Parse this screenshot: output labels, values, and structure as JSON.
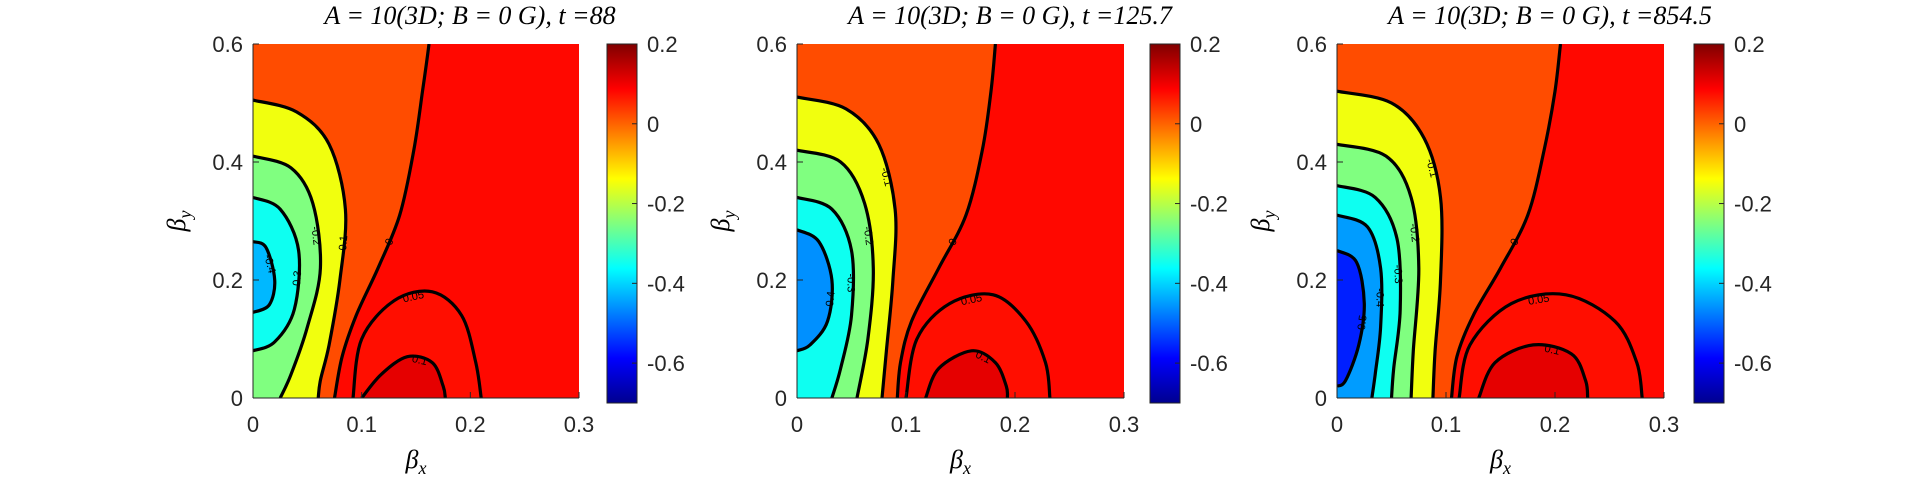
{
  "chart_data": [
    {
      "type": "contour",
      "title": "A = 10(3D; B = 0 G), t =88",
      "xlabel": "βx",
      "ylabel": "βy",
      "xlim": [
        0,
        0.3
      ],
      "ylim": [
        0,
        0.6
      ],
      "xticks": [
        "0",
        "0.1",
        "0.2",
        "0.3"
      ],
      "yticks": [
        "0",
        "0.2",
        "0.4",
        "0.6"
      ],
      "colorbar": {
        "lim": [
          -0.7,
          0.2
        ],
        "ticks": [
          "0.2",
          "0",
          "-0.2",
          "-0.4",
          "-0.6"
        ]
      },
      "center": {
        "x": 0.0,
        "y": 0.2,
        "value": -0.45
      },
      "hot_spot": {
        "x": 0.145,
        "y": 0.03,
        "value": 0.12
      },
      "neg_levels": [
        -0.4,
        -0.3,
        -0.2,
        -0.1
      ],
      "pos_levels": [
        0.05,
        0.1
      ],
      "contours": [
        {
          "level": "-0.4",
          "points": [
            [
              0,
              0.265
            ],
            [
              0.012,
              0.255
            ],
            [
              0.02,
              0.2
            ],
            [
              0.015,
              0.158
            ],
            [
              0,
              0.145
            ]
          ]
        },
        {
          "level": "-0.3",
          "points": [
            [
              0,
              0.34
            ],
            [
              0.025,
              0.32
            ],
            [
              0.042,
              0.25
            ],
            [
              0.038,
              0.15
            ],
            [
              0.02,
              0.095
            ],
            [
              0,
              0.08
            ]
          ]
        },
        {
          "level": "-0.2",
          "points": [
            [
              0,
              0.41
            ],
            [
              0.035,
              0.39
            ],
            [
              0.055,
              0.33
            ],
            [
              0.062,
              0.22
            ],
            [
              0.05,
              0.12
            ],
            [
              0.035,
              0.04
            ],
            [
              0.025,
              0
            ]
          ]
        },
        {
          "level": "-0.1",
          "points": [
            [
              0,
              0.505
            ],
            [
              0.04,
              0.485
            ],
            [
              0.07,
              0.43
            ],
            [
              0.085,
              0.32
            ],
            [
              0.08,
              0.2
            ],
            [
              0.07,
              0.09
            ],
            [
              0.062,
              0.03
            ],
            [
              0.06,
              0
            ]
          ]
        },
        {
          "level": "0",
          "points": [
            [
              0.075,
              0
            ],
            [
              0.082,
              0.07
            ],
            [
              0.095,
              0.14
            ],
            [
              0.115,
              0.22
            ],
            [
              0.135,
              0.31
            ],
            [
              0.148,
              0.42
            ],
            [
              0.156,
              0.52
            ],
            [
              0.162,
              0.6
            ]
          ]
        },
        {
          "level": "0.05",
          "points": [
            [
              0.092,
              0
            ],
            [
              0.1,
              0.1
            ],
            [
              0.13,
              0.165
            ],
            [
              0.165,
              0.18
            ],
            [
              0.192,
              0.14
            ],
            [
              0.205,
              0.06
            ],
            [
              0.21,
              0
            ]
          ]
        },
        {
          "level": "0.1",
          "points": [
            [
              0.1,
              0
            ],
            [
              0.118,
              0.04
            ],
            [
              0.142,
              0.07
            ],
            [
              0.165,
              0.06
            ],
            [
              0.175,
              0.02
            ],
            [
              0.177,
              0
            ]
          ]
        }
      ]
    },
    {
      "type": "contour",
      "title": "A = 10(3D; B = 0 G), t =125.7",
      "xlabel": "βx",
      "ylabel": "βy",
      "xlim": [
        0,
        0.3
      ],
      "ylim": [
        0,
        0.6
      ],
      "xticks": [
        "0",
        "0.1",
        "0.2",
        "0.3"
      ],
      "yticks": [
        "0",
        "0.2",
        "0.4",
        "0.6"
      ],
      "colorbar": {
        "lim": [
          -0.7,
          0.2
        ],
        "ticks": [
          "0.2",
          "0",
          "-0.2",
          "-0.4",
          "-0.6"
        ]
      },
      "center": {
        "x": 0.0,
        "y": 0.22,
        "value": -0.52
      },
      "hot_spot": {
        "x": 0.16,
        "y": 0.03,
        "value": 0.12
      },
      "neg_levels": [
        -0.4,
        -0.3,
        -0.2,
        -0.1
      ],
      "pos_levels": [
        0.05,
        0.1
      ],
      "contours": [
        {
          "level": "-0.4",
          "points": [
            [
              0,
              0.285
            ],
            [
              0.02,
              0.265
            ],
            [
              0.032,
              0.2
            ],
            [
              0.028,
              0.13
            ],
            [
              0.012,
              0.09
            ],
            [
              0,
              0.08
            ]
          ]
        },
        {
          "level": "-0.3",
          "points": [
            [
              0,
              0.34
            ],
            [
              0.032,
              0.32
            ],
            [
              0.05,
              0.25
            ],
            [
              0.05,
              0.14
            ],
            [
              0.04,
              0.05
            ],
            [
              0.032,
              0
            ]
          ]
        },
        {
          "level": "-0.2",
          "points": [
            [
              0,
              0.42
            ],
            [
              0.04,
              0.4
            ],
            [
              0.062,
              0.33
            ],
            [
              0.07,
              0.22
            ],
            [
              0.065,
              0.1
            ],
            [
              0.055,
              0
            ]
          ]
        },
        {
          "level": "-0.1",
          "points": [
            [
              0,
              0.51
            ],
            [
              0.045,
              0.49
            ],
            [
              0.075,
              0.43
            ],
            [
              0.09,
              0.32
            ],
            [
              0.088,
              0.2
            ],
            [
              0.082,
              0.08
            ],
            [
              0.078,
              0
            ]
          ]
        },
        {
          "level": "0",
          "points": [
            [
              0.092,
              0
            ],
            [
              0.095,
              0.06
            ],
            [
              0.105,
              0.13
            ],
            [
              0.13,
              0.22
            ],
            [
              0.155,
              0.31
            ],
            [
              0.17,
              0.42
            ],
            [
              0.178,
              0.52
            ],
            [
              0.182,
              0.6
            ]
          ]
        },
        {
          "level": "0.05",
          "points": [
            [
              0.1,
              0
            ],
            [
              0.11,
              0.1
            ],
            [
              0.14,
              0.16
            ],
            [
              0.18,
              0.175
            ],
            [
              0.21,
              0.13
            ],
            [
              0.228,
              0.06
            ],
            [
              0.232,
              0
            ]
          ]
        },
        {
          "level": "0.1",
          "points": [
            [
              0.118,
              0
            ],
            [
              0.13,
              0.05
            ],
            [
              0.16,
              0.08
            ],
            [
              0.182,
              0.06
            ],
            [
              0.192,
              0.02
            ],
            [
              0.193,
              0
            ]
          ]
        }
      ]
    },
    {
      "type": "contour",
      "title": "A = 10(3D; B = 0 G), t =854.5",
      "xlabel": "βx",
      "ylabel": "βy",
      "xlim": [
        0,
        0.3
      ],
      "ylim": [
        0,
        0.6
      ],
      "xticks": [
        "0",
        "0.1",
        "0.2",
        "0.3"
      ],
      "yticks": [
        "0",
        "0.2",
        "0.4",
        "0.6"
      ],
      "colorbar": {
        "lim": [
          -0.7,
          0.2
        ],
        "ticks": [
          "0.2",
          "0",
          "-0.2",
          "-0.4",
          "-0.6"
        ]
      },
      "center": {
        "x": 0.0,
        "y": 0.18,
        "value": -0.62
      },
      "hot_spot": {
        "x": 0.18,
        "y": 0.03,
        "value": 0.12
      },
      "neg_levels": [
        -0.5,
        -0.4,
        -0.3,
        -0.2,
        -0.1
      ],
      "pos_levels": [
        0.05,
        0.1
      ],
      "contours": [
        {
          "level": "-0.5",
          "points": [
            [
              0,
              0.25
            ],
            [
              0.018,
              0.23
            ],
            [
              0.025,
              0.16
            ],
            [
              0.02,
              0.09
            ],
            [
              0.008,
              0.03
            ],
            [
              0,
              0.02
            ]
          ]
        },
        {
          "level": "-0.4",
          "points": [
            [
              0,
              0.31
            ],
            [
              0.028,
              0.29
            ],
            [
              0.04,
              0.22
            ],
            [
              0.04,
              0.12
            ],
            [
              0.035,
              0.04
            ],
            [
              0.032,
              0
            ]
          ]
        },
        {
          "level": "-0.3",
          "points": [
            [
              0,
              0.36
            ],
            [
              0.035,
              0.34
            ],
            [
              0.055,
              0.27
            ],
            [
              0.058,
              0.15
            ],
            [
              0.052,
              0.05
            ],
            [
              0.05,
              0
            ]
          ]
        },
        {
          "level": "-0.2",
          "points": [
            [
              0,
              0.43
            ],
            [
              0.045,
              0.41
            ],
            [
              0.068,
              0.34
            ],
            [
              0.075,
              0.22
            ],
            [
              0.07,
              0.08
            ],
            [
              0.068,
              0
            ]
          ]
        },
        {
          "level": "-0.1",
          "points": [
            [
              0,
              0.52
            ],
            [
              0.05,
              0.5
            ],
            [
              0.08,
              0.44
            ],
            [
              0.095,
              0.34
            ],
            [
              0.095,
              0.2
            ],
            [
              0.09,
              0.08
            ],
            [
              0.088,
              0
            ]
          ]
        },
        {
          "level": "0",
          "points": [
            [
              0.105,
              0
            ],
            [
              0.11,
              0.07
            ],
            [
              0.125,
              0.14
            ],
            [
              0.15,
              0.22
            ],
            [
              0.175,
              0.31
            ],
            [
              0.19,
              0.42
            ],
            [
              0.2,
              0.52
            ],
            [
              0.205,
              0.6
            ]
          ]
        },
        {
          "level": "0.05",
          "points": [
            [
              0.112,
              0
            ],
            [
              0.122,
              0.09
            ],
            [
              0.16,
              0.16
            ],
            [
              0.21,
              0.175
            ],
            [
              0.255,
              0.13
            ],
            [
              0.275,
              0.06
            ],
            [
              0.28,
              0
            ]
          ]
        },
        {
          "level": "0.1",
          "points": [
            [
              0.13,
              0
            ],
            [
              0.145,
              0.06
            ],
            [
              0.18,
              0.09
            ],
            [
              0.215,
              0.075
            ],
            [
              0.228,
              0.03
            ],
            [
              0.23,
              0
            ]
          ]
        }
      ]
    }
  ]
}
